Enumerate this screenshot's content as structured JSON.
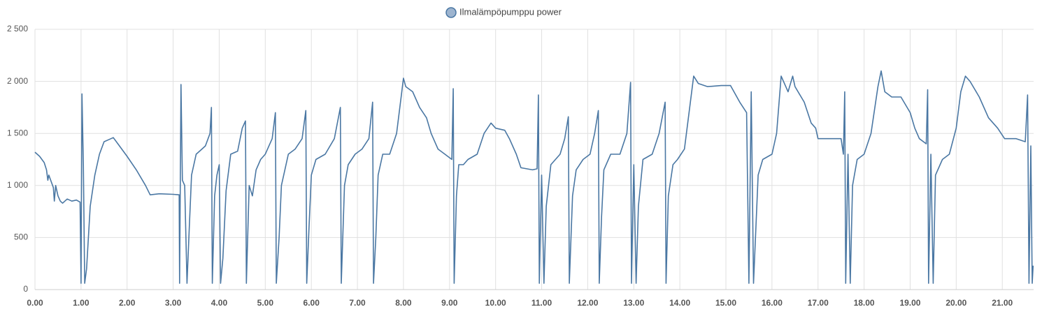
{
  "chart_data": {
    "type": "line",
    "title": null,
    "x": [
      0,
      0.1,
      0.2,
      0.25,
      0.28,
      0.3,
      0.4,
      0.42,
      0.45,
      0.5,
      0.55,
      0.6,
      0.7,
      0.8,
      0.9,
      0.98,
      1.0,
      1.02,
      1.05,
      1.08,
      1.12,
      1.2,
      1.3,
      1.4,
      1.5,
      1.6,
      1.7,
      1.8,
      2.0,
      2.2,
      2.4,
      2.5,
      2.7,
      3.0,
      3.13,
      3.14,
      3.17,
      3.2,
      3.25,
      3.3,
      3.35,
      3.4,
      3.5,
      3.6,
      3.7,
      3.8,
      3.83,
      3.85,
      3.9,
      3.95,
      4.0,
      4.03,
      4.08,
      4.15,
      4.25,
      4.4,
      4.5,
      4.57,
      4.59,
      4.65,
      4.72,
      4.8,
      4.9,
      5.0,
      5.15,
      5.22,
      5.24,
      5.3,
      5.35,
      5.4,
      5.5,
      5.65,
      5.8,
      5.88,
      5.9,
      5.95,
      6.0,
      6.1,
      6.3,
      6.5,
      6.63,
      6.65,
      6.72,
      6.8,
      6.95,
      7.1,
      7.25,
      7.33,
      7.35,
      7.4,
      7.45,
      7.55,
      7.7,
      7.85,
      7.95,
      8.0,
      8.05,
      8.2,
      8.35,
      8.5,
      8.6,
      8.75,
      8.9,
      9.05,
      9.08,
      9.1,
      9.15,
      9.2,
      9.3,
      9.4,
      9.6,
      9.75,
      9.9,
      10.0,
      10.2,
      10.3,
      10.45,
      10.55,
      10.8,
      10.9,
      10.93,
      10.95,
      11.0,
      11.05,
      11.1,
      11.2,
      11.4,
      11.5,
      11.58,
      11.6,
      11.67,
      11.75,
      11.9,
      12.05,
      12.15,
      12.23,
      12.25,
      12.3,
      12.35,
      12.5,
      12.7,
      12.85,
      12.93,
      12.95,
      13.0,
      13.05,
      13.1,
      13.2,
      13.4,
      13.55,
      13.68,
      13.7,
      13.75,
      13.85,
      13.95,
      14.1,
      14.3,
      14.4,
      14.6,
      14.9,
      15.1,
      15.3,
      15.45,
      15.5,
      15.55,
      15.6,
      15.7,
      15.8,
      16.0,
      16.1,
      16.2,
      16.35,
      16.45,
      16.5,
      16.7,
      16.85,
      16.95,
      17.0,
      17.2,
      17.5,
      17.55,
      17.58,
      17.6,
      17.65,
      17.7,
      17.75,
      17.85,
      18.0,
      18.15,
      18.3,
      18.37,
      18.45,
      18.6,
      18.8,
      19.0,
      19.1,
      19.2,
      19.35,
      19.38,
      19.4,
      19.45,
      19.5,
      19.55,
      19.7,
      19.85,
      20.0,
      20.1,
      20.2,
      20.3,
      20.5,
      20.7,
      20.9,
      21.05,
      21.3,
      21.5,
      21.55,
      21.58,
      21.62,
      21.65,
      21.67
    ],
    "xlim": [
      0,
      21.68
    ],
    "xticks": [
      {
        "value": 0,
        "label": "0.00"
      },
      {
        "value": 1,
        "label": "1.00"
      },
      {
        "value": 2,
        "label": "2.00"
      },
      {
        "value": 3,
        "label": "3.00"
      },
      {
        "value": 4,
        "label": "4.00"
      },
      {
        "value": 5,
        "label": "5.00"
      },
      {
        "value": 6,
        "label": "6.00"
      },
      {
        "value": 7,
        "label": "7.00"
      },
      {
        "value": 8,
        "label": "8.00"
      },
      {
        "value": 9,
        "label": "9.00"
      },
      {
        "value": 10,
        "label": "10.00"
      },
      {
        "value": 11,
        "label": "11.00"
      },
      {
        "value": 12,
        "label": "12.00"
      },
      {
        "value": 13,
        "label": "13.00"
      },
      {
        "value": 14,
        "label": "14.00"
      },
      {
        "value": 15,
        "label": "15.00"
      },
      {
        "value": 16,
        "label": "16.00"
      },
      {
        "value": 17,
        "label": "17.00"
      },
      {
        "value": 18,
        "label": "18.00"
      },
      {
        "value": 19,
        "label": "19.00"
      },
      {
        "value": 20,
        "label": "20.00"
      },
      {
        "value": 21,
        "label": "21.00"
      }
    ],
    "ylim": [
      0,
      2500
    ],
    "yticks": [
      0,
      500,
      {
        "value": 1000,
        "label": "1 000"
      },
      {
        "value": 1500,
        "label": "1 500"
      },
      {
        "value": 2000,
        "label": "2 000"
      },
      {
        "value": 2500,
        "label": "2 500"
      }
    ],
    "grid": true,
    "series": [
      {
        "name": "Ilmalämpöpumppu power",
        "color": "#4a77a3",
        "values": [
          1320,
          1280,
          1220,
          1150,
          1050,
          1100,
          980,
          850,
          1000,
          900,
          850,
          830,
          870,
          850,
          860,
          840,
          60,
          1880,
          1200,
          60,
          200,
          800,
          1100,
          1300,
          1420,
          1440,
          1460,
          1400,
          1280,
          1150,
          1000,
          910,
          920,
          915,
          910,
          60,
          1970,
          1050,
          1000,
          60,
          600,
          1100,
          1300,
          1340,
          1380,
          1500,
          1750,
          60,
          900,
          1100,
          1200,
          60,
          300,
          950,
          1300,
          1330,
          1550,
          1620,
          60,
          1000,
          900,
          1150,
          1250,
          1300,
          1450,
          1700,
          60,
          500,
          1000,
          1100,
          1300,
          1350,
          1450,
          1720,
          60,
          600,
          1100,
          1250,
          1300,
          1450,
          1750,
          60,
          1000,
          1200,
          1300,
          1350,
          1450,
          1800,
          60,
          500,
          1100,
          1300,
          1300,
          1500,
          1850,
          2030,
          1950,
          1900,
          1750,
          1650,
          1500,
          1350,
          1300,
          1250,
          1930,
          60,
          900,
          1200,
          1200,
          1250,
          1300,
          1500,
          1600,
          1550,
          1530,
          1450,
          1300,
          1170,
          1150,
          1160,
          1870,
          60,
          1100,
          60,
          800,
          1200,
          1300,
          1450,
          1660,
          60,
          900,
          1150,
          1250,
          1300,
          1500,
          1720,
          60,
          700,
          1150,
          1300,
          1300,
          1500,
          1990,
          60,
          1200,
          60,
          800,
          1250,
          1300,
          1500,
          1800,
          60,
          900,
          1200,
          1250,
          1350,
          2050,
          1980,
          1950,
          1960,
          1960,
          1800,
          1700,
          60,
          1900,
          60,
          1100,
          1250,
          1300,
          1500,
          2050,
          1900,
          2050,
          1950,
          1800,
          1600,
          1550,
          1450,
          1450,
          1450,
          1300,
          1900,
          60,
          1300,
          60,
          1000,
          1250,
          1300,
          1500,
          1950,
          2100,
          1900,
          1850,
          1850,
          1700,
          1550,
          1450,
          1400,
          1920,
          60,
          1300,
          60,
          1100,
          1250,
          1300,
          1550,
          1900,
          2050,
          2000,
          1850,
          1650,
          1550,
          1450,
          1450,
          1420,
          1870,
          60,
          1380,
          60,
          230
        ]
      }
    ]
  }
}
